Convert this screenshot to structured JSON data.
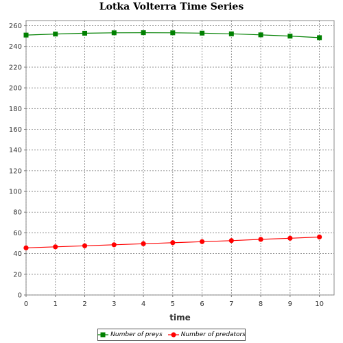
{
  "chart_data": {
    "type": "line",
    "title": "Lotka Volterra Time Series",
    "xlabel": "time",
    "ylabel": "",
    "x": [
      0,
      1,
      2,
      3,
      4,
      5,
      6,
      7,
      8,
      9,
      10
    ],
    "xlim": [
      0,
      10.5
    ],
    "ylim": [
      0,
      265
    ],
    "xticks": [
      0,
      1,
      2,
      3,
      4,
      5,
      6,
      7,
      8,
      9,
      10
    ],
    "yticks": [
      0,
      20,
      40,
      60,
      80,
      100,
      120,
      140,
      160,
      180,
      200,
      220,
      240,
      260
    ],
    "grid": true,
    "legend_position": "bottom",
    "series": [
      {
        "name": "Number of preys",
        "color": "#008000",
        "marker": "square",
        "values": [
          251,
          252,
          252.8,
          253.2,
          253.3,
          253.2,
          252.9,
          252.2,
          251.2,
          250,
          248.5
        ]
      },
      {
        "name": "Number of predators",
        "color": "#ff0000",
        "marker": "circle",
        "values": [
          45.5,
          46.5,
          47.5,
          48.5,
          49.5,
          50.5,
          51.5,
          52.5,
          53.7,
          54.8,
          56
        ]
      }
    ]
  }
}
